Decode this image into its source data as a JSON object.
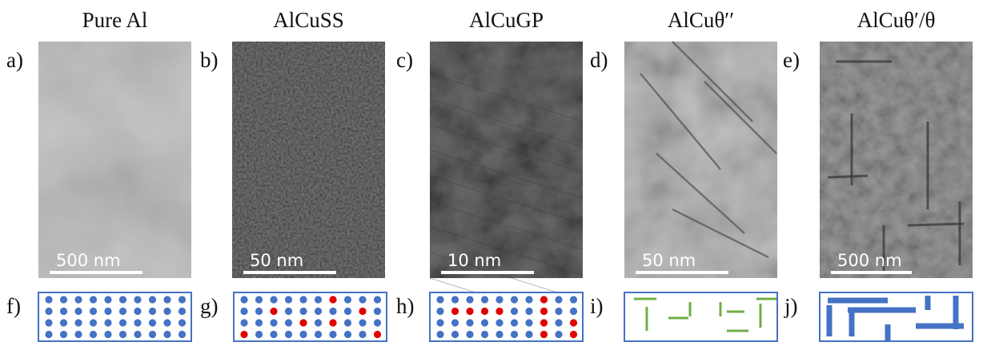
{
  "panels": [
    {
      "label": "a)",
      "title": "Pure Al",
      "scale_bar": "500 nm"
    },
    {
      "label": "b)",
      "title": "AlCuSS",
      "scale_bar": "50 nm"
    },
    {
      "label": "c)",
      "title": "AlCuGP",
      "scale_bar": "10 nm"
    },
    {
      "label": "d)",
      "title": "AlCuθ′′",
      "scale_bar": "50 nm"
    },
    {
      "label": "e)",
      "title": "AlCuθ′/θ",
      "scale_bar": "500 nm"
    }
  ],
  "schematics": [
    {
      "label": "f)"
    },
    {
      "label": "g)"
    },
    {
      "label": "h)"
    },
    {
      "label": "i)"
    },
    {
      "label": "j)"
    }
  ]
}
